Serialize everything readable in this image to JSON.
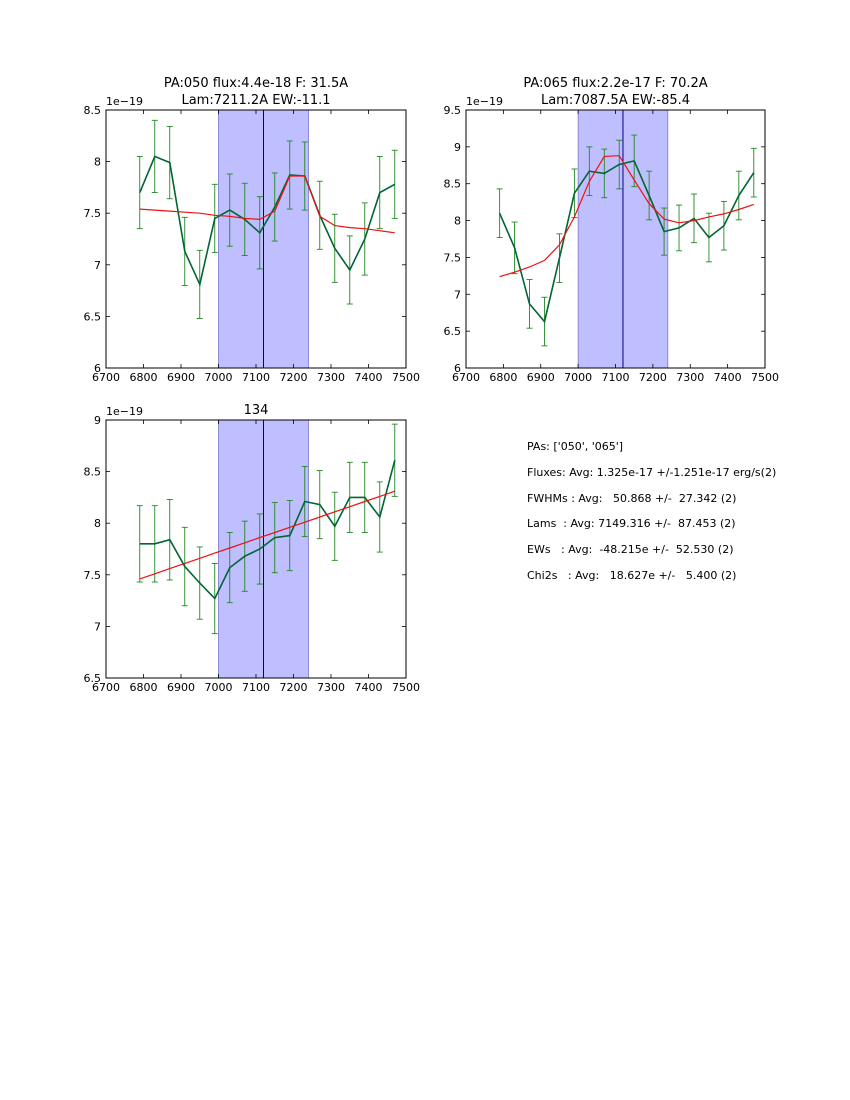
{
  "chart_data": [
    {
      "type": "line",
      "title": "PA:050 flux:4.4e-18 F: 31.5A\nLam:7211.2A EW:-11.1",
      "xlabel": "",
      "ylabel": "",
      "xlim": [
        6700,
        7500
      ],
      "ylim": [
        6.0,
        8.5
      ],
      "y_scale_label": "1e−19",
      "xticks": [
        6700,
        6800,
        6900,
        7000,
        7100,
        7200,
        7300,
        7400,
        7500
      ],
      "yticks": [
        6.0,
        6.5,
        7.0,
        7.5,
        8.0,
        8.5
      ],
      "shaded_region": [
        7000,
        7240
      ],
      "vline": 7120,
      "x": [
        6790,
        6830,
        6870,
        6910,
        6950,
        6990,
        7030,
        7070,
        7110,
        7150,
        7190,
        7230,
        7270,
        7310,
        7350,
        7390,
        7430,
        7470
      ],
      "series": [
        {
          "values": [
            7.7,
            8.05,
            7.99,
            7.13,
            6.81,
            7.45,
            7.53,
            7.44,
            7.31,
            7.56,
            7.87,
            7.86,
            7.48,
            7.16,
            6.95,
            7.25,
            7.7,
            7.78
          ],
          "errors": [
            0.35,
            0.35,
            0.35,
            0.33,
            0.33,
            0.33,
            0.35,
            0.35,
            0.35,
            0.33,
            0.33,
            0.33,
            0.33,
            0.33,
            0.33,
            0.35,
            0.35,
            0.33
          ]
        },
        {
          "values": [
            7.54,
            7.53,
            7.52,
            7.51,
            7.5,
            7.48,
            7.47,
            7.45,
            7.44,
            7.52,
            7.86,
            7.86,
            7.47,
            7.38,
            7.36,
            7.35,
            7.33,
            7.31
          ]
        }
      ]
    },
    {
      "type": "line",
      "title": "PA:065 flux:2.2e-17 F: 70.2A\nLam:7087.5A EW:-85.4",
      "xlabel": "",
      "ylabel": "",
      "xlim": [
        6700,
        7500
      ],
      "ylim": [
        6.0,
        9.5
      ],
      "y_scale_label": "1e−19",
      "xticks": [
        6700,
        6800,
        6900,
        7000,
        7100,
        7200,
        7300,
        7400,
        7500
      ],
      "yticks": [
        6.0,
        6.5,
        7.0,
        7.5,
        8.0,
        8.5,
        9.0,
        9.5
      ],
      "shaded_region": [
        7000,
        7240
      ],
      "vline": 7120,
      "x": [
        6790,
        6830,
        6870,
        6910,
        6950,
        6990,
        7030,
        7070,
        7110,
        7150,
        7190,
        7230,
        7270,
        7310,
        7350,
        7390,
        7430,
        7470
      ],
      "series": [
        {
          "values": [
            8.1,
            7.63,
            6.87,
            6.63,
            7.49,
            8.37,
            8.67,
            8.64,
            8.76,
            8.81,
            8.34,
            7.85,
            7.9,
            8.03,
            7.77,
            7.93,
            8.34,
            8.65
          ],
          "errors": [
            0.33,
            0.35,
            0.33,
            0.33,
            0.33,
            0.33,
            0.33,
            0.33,
            0.33,
            0.35,
            0.33,
            0.32,
            0.31,
            0.33,
            0.33,
            0.33,
            0.33,
            0.33
          ]
        },
        {
          "values": [
            7.24,
            7.3,
            7.37,
            7.46,
            7.67,
            8.05,
            8.53,
            8.87,
            8.88,
            8.55,
            8.23,
            8.02,
            7.97,
            8.0,
            8.05,
            8.09,
            8.15,
            8.22
          ]
        }
      ]
    },
    {
      "type": "line",
      "title": "134",
      "xlabel": "",
      "ylabel": "",
      "xlim": [
        6700,
        7500
      ],
      "ylim": [
        6.5,
        9.0
      ],
      "y_scale_label": "1e−19",
      "xticks": [
        6700,
        6800,
        6900,
        7000,
        7100,
        7200,
        7300,
        7400,
        7500
      ],
      "yticks": [
        6.5,
        7.0,
        7.5,
        8.0,
        8.5,
        9.0
      ],
      "shaded_region": [
        7000,
        7240
      ],
      "vline": 7120,
      "x": [
        6790,
        6830,
        6870,
        6910,
        6950,
        6990,
        7030,
        7070,
        7110,
        7150,
        7190,
        7230,
        7270,
        7310,
        7350,
        7390,
        7430,
        7470
      ],
      "series": [
        {
          "values": [
            7.8,
            7.8,
            7.84,
            7.58,
            7.42,
            7.27,
            7.57,
            7.68,
            7.75,
            7.86,
            7.88,
            8.21,
            8.18,
            7.97,
            8.25,
            8.25,
            8.06,
            8.61
          ],
          "errors": [
            0.37,
            0.37,
            0.39,
            0.38,
            0.35,
            0.34,
            0.34,
            0.34,
            0.34,
            0.34,
            0.34,
            0.34,
            0.33,
            0.33,
            0.34,
            0.34,
            0.34,
            0.35
          ]
        },
        {
          "values": [
            7.46,
            7.51,
            7.56,
            7.61,
            7.66,
            7.71,
            7.76,
            7.81,
            7.86,
            7.91,
            7.96,
            8.01,
            8.06,
            8.11,
            8.16,
            8.21,
            8.26,
            8.31
          ]
        }
      ]
    }
  ],
  "stats": {
    "pas": "PAs: ['050', '065']",
    "fluxes": "Fluxes: Avg: 1.325e-17 +/-1.251e-17 erg/s(2)",
    "fwhms": "FWHMs : Avg:   50.868 +/-  27.342 (2)",
    "lams": "Lams  : Avg: 7149.316 +/-  87.453 (2)",
    "ews": "EWs   : Avg:  -48.215e +/-  52.530 (2)",
    "chi2s": "Chi2s   : Avg:   18.627e +/-   5.400 (2)"
  },
  "colors": {
    "data": "#006633",
    "errorbar": "#228822",
    "fit": "#ee1111",
    "shade": "#bfbfff",
    "shade_edge": "#7777cc",
    "vline": "#000088"
  }
}
